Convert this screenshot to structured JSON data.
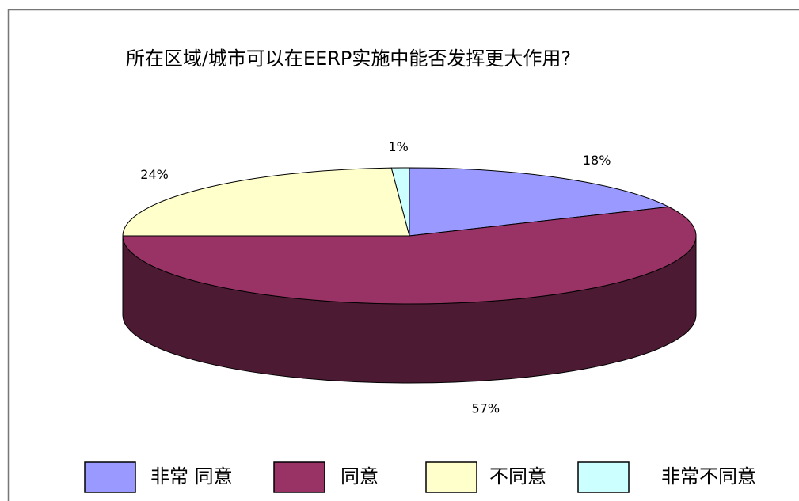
{
  "chart_data": {
    "type": "pie3d",
    "title": "所在区域/城市可以在EERP实施中能否发挥更大作用?",
    "categories": [
      "非常 同意",
      "同意",
      "不同意",
      "非常不同意"
    ],
    "values": [
      18,
      57,
      24,
      1
    ],
    "value_labels": [
      "18%",
      "57%",
      "24%",
      "1%"
    ],
    "colors": [
      "#9999ff",
      "#993366",
      "#ffffcc",
      "#ccffff"
    ],
    "legend": "bottom"
  }
}
